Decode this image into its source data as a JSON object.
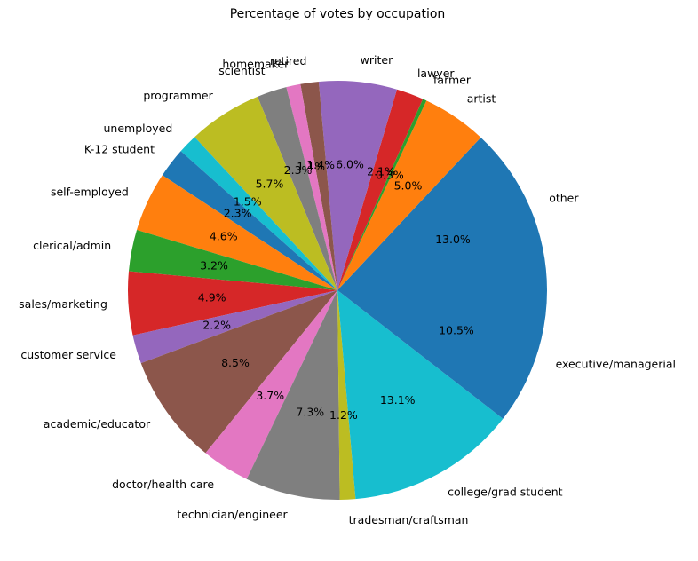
{
  "chart_data": {
    "type": "pie",
    "title": "Percentage of votes by occupation",
    "start_angle_deg": 0,
    "direction": "counterclockwise",
    "slices": [
      {
        "label": "other",
        "value": 13.0,
        "pct_text": "13.0%",
        "color": "#1f77b4"
      },
      {
        "label": "artist",
        "value": 5.0,
        "pct_text": "5.0%",
        "color": "#ff7f0e"
      },
      {
        "label": "farmer",
        "value": 0.3,
        "pct_text": "0.3%",
        "color": "#2ca02c"
      },
      {
        "label": "lawyer",
        "value": 2.1,
        "pct_text": "2.1%",
        "color": "#d62728"
      },
      {
        "label": "writer",
        "value": 6.0,
        "pct_text": "6.0%",
        "color": "#9467bd"
      },
      {
        "label": "retired",
        "value": 1.4,
        "pct_text": "1.4%",
        "color": "#8c564b"
      },
      {
        "label": "homemaker",
        "value": 1.1,
        "pct_text": "1.1%",
        "color": "#e377c2"
      },
      {
        "label": "scientist",
        "value": 2.3,
        "pct_text": "2.3%",
        "color": "#7f7f7f"
      },
      {
        "label": "programmer",
        "value": 5.7,
        "pct_text": "5.7%",
        "color": "#bcbd22"
      },
      {
        "label": "unemployed",
        "value": 1.5,
        "pct_text": "1.5%",
        "color": "#17becf"
      },
      {
        "label": "K-12 student",
        "value": 2.3,
        "pct_text": "2.3%",
        "color": "#1f77b4"
      },
      {
        "label": "self-employed",
        "value": 4.6,
        "pct_text": "4.6%",
        "color": "#ff7f0e"
      },
      {
        "label": "clerical/admin",
        "value": 3.2,
        "pct_text": "3.2%",
        "color": "#2ca02c"
      },
      {
        "label": "sales/marketing",
        "value": 4.9,
        "pct_text": "4.9%",
        "color": "#d62728"
      },
      {
        "label": "customer service",
        "value": 2.2,
        "pct_text": "2.2%",
        "color": "#9467bd"
      },
      {
        "label": "academic/educator",
        "value": 8.5,
        "pct_text": "8.5%",
        "color": "#8c564b"
      },
      {
        "label": "doctor/health care",
        "value": 3.7,
        "pct_text": "3.7%",
        "color": "#e377c2"
      },
      {
        "label": "technician/engineer",
        "value": 7.3,
        "pct_text": "7.3%",
        "color": "#7f7f7f"
      },
      {
        "label": "tradesman/craftsman",
        "value": 1.2,
        "pct_text": "1.2%",
        "color": "#bcbd22"
      },
      {
        "label": "college/grad student",
        "value": 13.1,
        "pct_text": "13.1%",
        "color": "#17becf"
      },
      {
        "label": "executive/managerial",
        "value": 10.5,
        "pct_text": "10.5%",
        "color": "#1f77b4"
      }
    ]
  }
}
